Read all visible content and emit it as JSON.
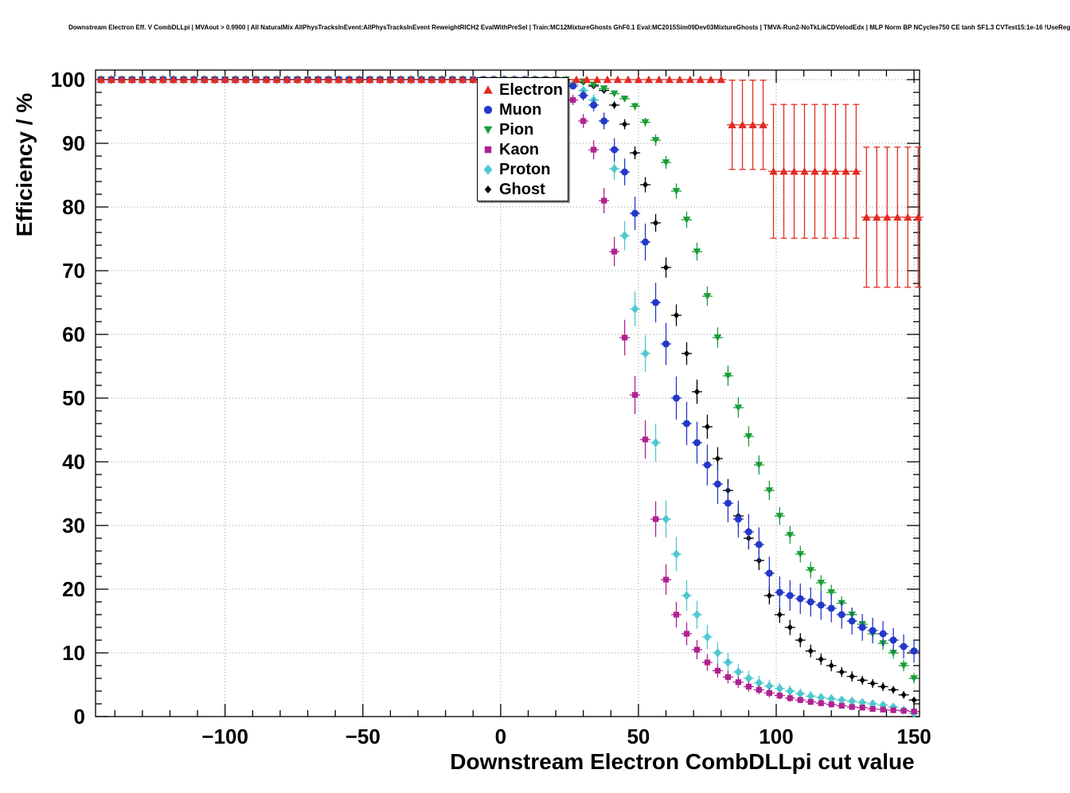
{
  "header": {
    "info_line": "Downstream Electron Eff. V CombDLLpi | MVAout > 0.9900 | All NaturalMix AllPhysTracksInEvent:AllPhysTracksInEvent ReweightRICH2 EvalWithPreSel | Train:MC12MixtureGhosts GhF0.1 Eval:MC2015Sim09Dev03MixtureGhosts | TMVA-Run2-NoTkLikCDVelodEdx | MLP Norm BP NCycles750 CE tanh SF1.3 CVTest15:1e-16 !UseReg"
  },
  "chart_data": {
    "type": "scatter",
    "title": "",
    "xlabel": "Downstream Electron CombDLLpi cut value",
    "ylabel": "Efficiency / %",
    "xlim": [
      -147,
      152
    ],
    "ylim": [
      0,
      101.5
    ],
    "xticks": [
      -100,
      -50,
      0,
      50,
      100,
      150
    ],
    "yticks": [
      0,
      10,
      20,
      30,
      40,
      50,
      60,
      70,
      80,
      90,
      100
    ],
    "x_minor_step": 10,
    "y_minor_step": 2,
    "grid": "dotted",
    "grid_color": "#9a9a9a",
    "legend_position": "top-center",
    "bin_half_width": 1.875,
    "series": [
      {
        "name": "Electron",
        "color": "#e32b22",
        "marker": "triangle-up",
        "flat": {
          "from": -145,
          "to": 80.25,
          "step": 3.75,
          "y": 100,
          "err": 0.15
        },
        "points": [
          [
            84,
            92.9,
            7
          ],
          [
            87.75,
            92.9,
            7
          ],
          [
            91.5,
            92.9,
            7
          ],
          [
            95.25,
            92.9,
            7
          ],
          [
            99,
            85.6,
            10.5
          ],
          [
            102.75,
            85.6,
            10.5
          ],
          [
            106.5,
            85.6,
            10.5
          ],
          [
            110.25,
            85.6,
            10.5
          ],
          [
            114,
            85.6,
            10.5
          ],
          [
            117.75,
            85.6,
            10.5
          ],
          [
            121.5,
            85.6,
            10.5
          ],
          [
            125.25,
            85.6,
            10.5
          ],
          [
            129,
            85.6,
            10.5
          ],
          [
            132.75,
            78.4,
            11
          ],
          [
            136.5,
            78.4,
            11
          ],
          [
            140.25,
            78.4,
            11
          ],
          [
            144,
            78.4,
            11
          ],
          [
            147.75,
            78.4,
            11
          ],
          [
            151.5,
            78.4,
            11
          ]
        ]
      },
      {
        "name": "Muon",
        "color": "#2438c8",
        "marker": "circle",
        "flat": {
          "from": -145,
          "to": 22.5,
          "step": 3.75,
          "y": 100,
          "err": 0.2
        },
        "points": [
          [
            26.25,
            99,
            0.5
          ],
          [
            30,
            97.5,
            0.8
          ],
          [
            33.75,
            96,
            1
          ],
          [
            37.5,
            93.5,
            1.3
          ],
          [
            41.25,
            89,
            1.8
          ],
          [
            45,
            85.5,
            2.1
          ],
          [
            48.75,
            79,
            2.6
          ],
          [
            52.5,
            74.5,
            2.9
          ],
          [
            56.25,
            65,
            3.1
          ],
          [
            60,
            58.5,
            3.3
          ],
          [
            63.75,
            50,
            3.4
          ],
          [
            67.5,
            46,
            3.4
          ],
          [
            71.25,
            43,
            3.3
          ],
          [
            75,
            39.5,
            3.2
          ],
          [
            78.75,
            36.5,
            3.1
          ],
          [
            82.5,
            33.5,
            3
          ],
          [
            86.25,
            31,
            2.9
          ],
          [
            90,
            29,
            2.8
          ],
          [
            93.75,
            27,
            2.7
          ],
          [
            97.5,
            22.5,
            2.6
          ],
          [
            101.25,
            19.5,
            2.5
          ],
          [
            105,
            19,
            2.4
          ],
          [
            108.75,
            18.5,
            2.4
          ],
          [
            112.5,
            18,
            2.3
          ],
          [
            116.25,
            17.5,
            2.3
          ],
          [
            120,
            17,
            2.2
          ],
          [
            123.75,
            16,
            2.2
          ],
          [
            127.5,
            15,
            2.1
          ],
          [
            131.25,
            14,
            2.1
          ],
          [
            135,
            13.5,
            2
          ],
          [
            138.75,
            13,
            2
          ],
          [
            142.5,
            12,
            1.9
          ],
          [
            146.25,
            11,
            1.9
          ],
          [
            150,
            10.3,
            1.8
          ]
        ]
      },
      {
        "name": "Pion",
        "color": "#1a9e38",
        "marker": "triangle-down",
        "flat": {
          "from": -145,
          "to": 26.25,
          "step": 3.75,
          "y": 100,
          "err": 0.2
        },
        "points": [
          [
            30,
            99.7,
            0.2
          ],
          [
            33.75,
            99.2,
            0.3
          ],
          [
            37.5,
            98.6,
            0.3
          ],
          [
            41.25,
            97.8,
            0.4
          ],
          [
            45,
            97,
            0.5
          ],
          [
            48.75,
            95.8,
            0.6
          ],
          [
            52.5,
            93.3,
            0.7
          ],
          [
            56.25,
            90.5,
            0.9
          ],
          [
            60,
            87,
            1
          ],
          [
            63.75,
            82.5,
            1.2
          ],
          [
            67.5,
            78,
            1.3
          ],
          [
            71.25,
            73,
            1.4
          ],
          [
            75,
            66,
            1.5
          ],
          [
            78.75,
            59.5,
            1.6
          ],
          [
            82.5,
            53.5,
            1.6
          ],
          [
            86.25,
            48.5,
            1.6
          ],
          [
            90,
            44,
            1.6
          ],
          [
            93.75,
            39.5,
            1.5
          ],
          [
            97.5,
            35.5,
            1.5
          ],
          [
            101.25,
            31.5,
            1.4
          ],
          [
            105,
            28.5,
            1.4
          ],
          [
            108.75,
            25.5,
            1.3
          ],
          [
            112.5,
            23,
            1.3
          ],
          [
            116.25,
            21,
            1.2
          ],
          [
            120,
            19.5,
            1.2
          ],
          [
            123.75,
            17.8,
            1.1
          ],
          [
            127.5,
            16,
            1.1
          ],
          [
            131.25,
            14.5,
            1
          ],
          [
            135,
            13,
            1
          ],
          [
            138.75,
            11.5,
            1
          ],
          [
            142.5,
            10,
            0.9
          ],
          [
            146.25,
            8,
            0.9
          ],
          [
            150,
            6,
            0.8
          ]
        ]
      },
      {
        "name": "Kaon",
        "color": "#b02191",
        "marker": "square",
        "flat": {
          "from": -145,
          "to": 15,
          "step": 3.75,
          "y": 100,
          "err": 0.2
        },
        "points": [
          [
            18.75,
            99.5,
            0.3
          ],
          [
            22.5,
            98.5,
            0.5
          ],
          [
            26.25,
            96.8,
            0.8
          ],
          [
            30,
            93.5,
            1.1
          ],
          [
            33.75,
            89,
            1.5
          ],
          [
            37.5,
            81,
            2
          ],
          [
            41.25,
            73,
            2.3
          ],
          [
            45,
            59.5,
            2.8
          ],
          [
            48.75,
            50.5,
            3
          ],
          [
            52.5,
            43.5,
            3
          ],
          [
            56.25,
            31,
            2.8
          ],
          [
            60,
            21.5,
            2.4
          ],
          [
            63.75,
            16,
            2
          ],
          [
            67.5,
            13,
            1.8
          ],
          [
            71.25,
            10.5,
            1.5
          ],
          [
            75,
            8.5,
            1.3
          ],
          [
            78.75,
            7.2,
            1.1
          ],
          [
            82.5,
            6.2,
            1
          ],
          [
            86.25,
            5.4,
            0.9
          ],
          [
            90,
            4.7,
            0.8
          ],
          [
            93.75,
            4.2,
            0.7
          ],
          [
            97.5,
            3.7,
            0.7
          ],
          [
            101.25,
            3.3,
            0.6
          ],
          [
            105,
            2.9,
            0.6
          ],
          [
            108.75,
            2.6,
            0.5
          ],
          [
            112.5,
            2.3,
            0.5
          ],
          [
            116.25,
            2.1,
            0.5
          ],
          [
            120,
            1.9,
            0.4
          ],
          [
            123.75,
            1.7,
            0.4
          ],
          [
            127.5,
            1.5,
            0.4
          ],
          [
            131.25,
            1.4,
            0.3
          ],
          [
            135,
            1.2,
            0.3
          ],
          [
            138.75,
            1.1,
            0.3
          ],
          [
            142.5,
            1,
            0.3
          ],
          [
            146.25,
            0.9,
            0.3
          ],
          [
            150,
            0.8,
            0.3
          ]
        ]
      },
      {
        "name": "Proton",
        "color": "#4fc8ce",
        "marker": "diamond",
        "flat": {
          "from": -145,
          "to": 22.5,
          "step": 3.75,
          "y": 100,
          "err": 0.2
        },
        "points": [
          [
            26.25,
            99.3,
            0.4
          ],
          [
            30,
            98.3,
            0.6
          ],
          [
            33.75,
            96.8,
            0.9
          ],
          [
            37.5,
            93.5,
            1.3
          ],
          [
            41.25,
            86,
            1.8
          ],
          [
            45,
            75.5,
            2.3
          ],
          [
            48.75,
            64,
            2.7
          ],
          [
            52.5,
            57,
            2.9
          ],
          [
            56.25,
            43,
            3
          ],
          [
            60,
            31,
            2.9
          ],
          [
            63.75,
            25.5,
            2.7
          ],
          [
            67.5,
            19,
            2.4
          ],
          [
            71.25,
            16,
            2.2
          ],
          [
            75,
            12.5,
            1.9
          ],
          [
            78.75,
            10,
            1.7
          ],
          [
            82.5,
            8.5,
            1.5
          ],
          [
            86.25,
            7,
            1.3
          ],
          [
            90,
            6,
            1.2
          ],
          [
            93.75,
            5.3,
            1.1
          ],
          [
            97.5,
            4.8,
            1
          ],
          [
            101.25,
            4.4,
            0.9
          ],
          [
            105,
            4,
            0.9
          ],
          [
            108.75,
            3.6,
            0.8
          ],
          [
            112.5,
            3.2,
            0.8
          ],
          [
            116.25,
            3,
            0.7
          ],
          [
            120,
            2.8,
            0.7
          ],
          [
            123.75,
            2.6,
            0.6
          ],
          [
            127.5,
            2.4,
            0.6
          ],
          [
            131.25,
            2.2,
            0.6
          ],
          [
            135,
            2,
            0.5
          ],
          [
            138.75,
            1.8,
            0.5
          ],
          [
            142.5,
            1.5,
            0.5
          ],
          [
            146.25,
            1,
            0.4
          ],
          [
            150,
            0.5,
            0.4
          ]
        ]
      },
      {
        "name": "Ghost",
        "color": "#000000",
        "marker": "diamond-small",
        "flat": {
          "from": -145,
          "to": 26.25,
          "step": 3.75,
          "y": 100,
          "err": 0.2
        },
        "points": [
          [
            30,
            99.6,
            0.2
          ],
          [
            33.75,
            99,
            0.3
          ],
          [
            37.5,
            98.3,
            0.4
          ],
          [
            41.25,
            96,
            0.6
          ],
          [
            45,
            93,
            0.8
          ],
          [
            48.75,
            88.5,
            1
          ],
          [
            52.5,
            83.5,
            1.2
          ],
          [
            56.25,
            77.5,
            1.4
          ],
          [
            60,
            70.5,
            1.6
          ],
          [
            63.75,
            63,
            1.7
          ],
          [
            67.5,
            57,
            1.8
          ],
          [
            71.25,
            51,
            1.9
          ],
          [
            75,
            45.5,
            1.9
          ],
          [
            78.75,
            40.5,
            1.8
          ],
          [
            82.5,
            35.5,
            1.8
          ],
          [
            86.25,
            31.5,
            1.7
          ],
          [
            90,
            28,
            1.6
          ],
          [
            93.75,
            24.5,
            1.5
          ],
          [
            97.5,
            19,
            1.4
          ],
          [
            101.25,
            16,
            1.3
          ],
          [
            105,
            14,
            1.2
          ],
          [
            108.75,
            12,
            1.1
          ],
          [
            112.5,
            10.3,
            1
          ],
          [
            116.25,
            9,
            0.9
          ],
          [
            120,
            8,
            0.9
          ],
          [
            123.75,
            7,
            0.8
          ],
          [
            127.5,
            6.3,
            0.8
          ],
          [
            131.25,
            5.7,
            0.7
          ],
          [
            135,
            5.2,
            0.7
          ],
          [
            138.75,
            4.7,
            0.7
          ],
          [
            142.5,
            4.2,
            0.6
          ],
          [
            146.25,
            3.4,
            0.6
          ],
          [
            150,
            2.6,
            0.5
          ]
        ]
      }
    ]
  }
}
